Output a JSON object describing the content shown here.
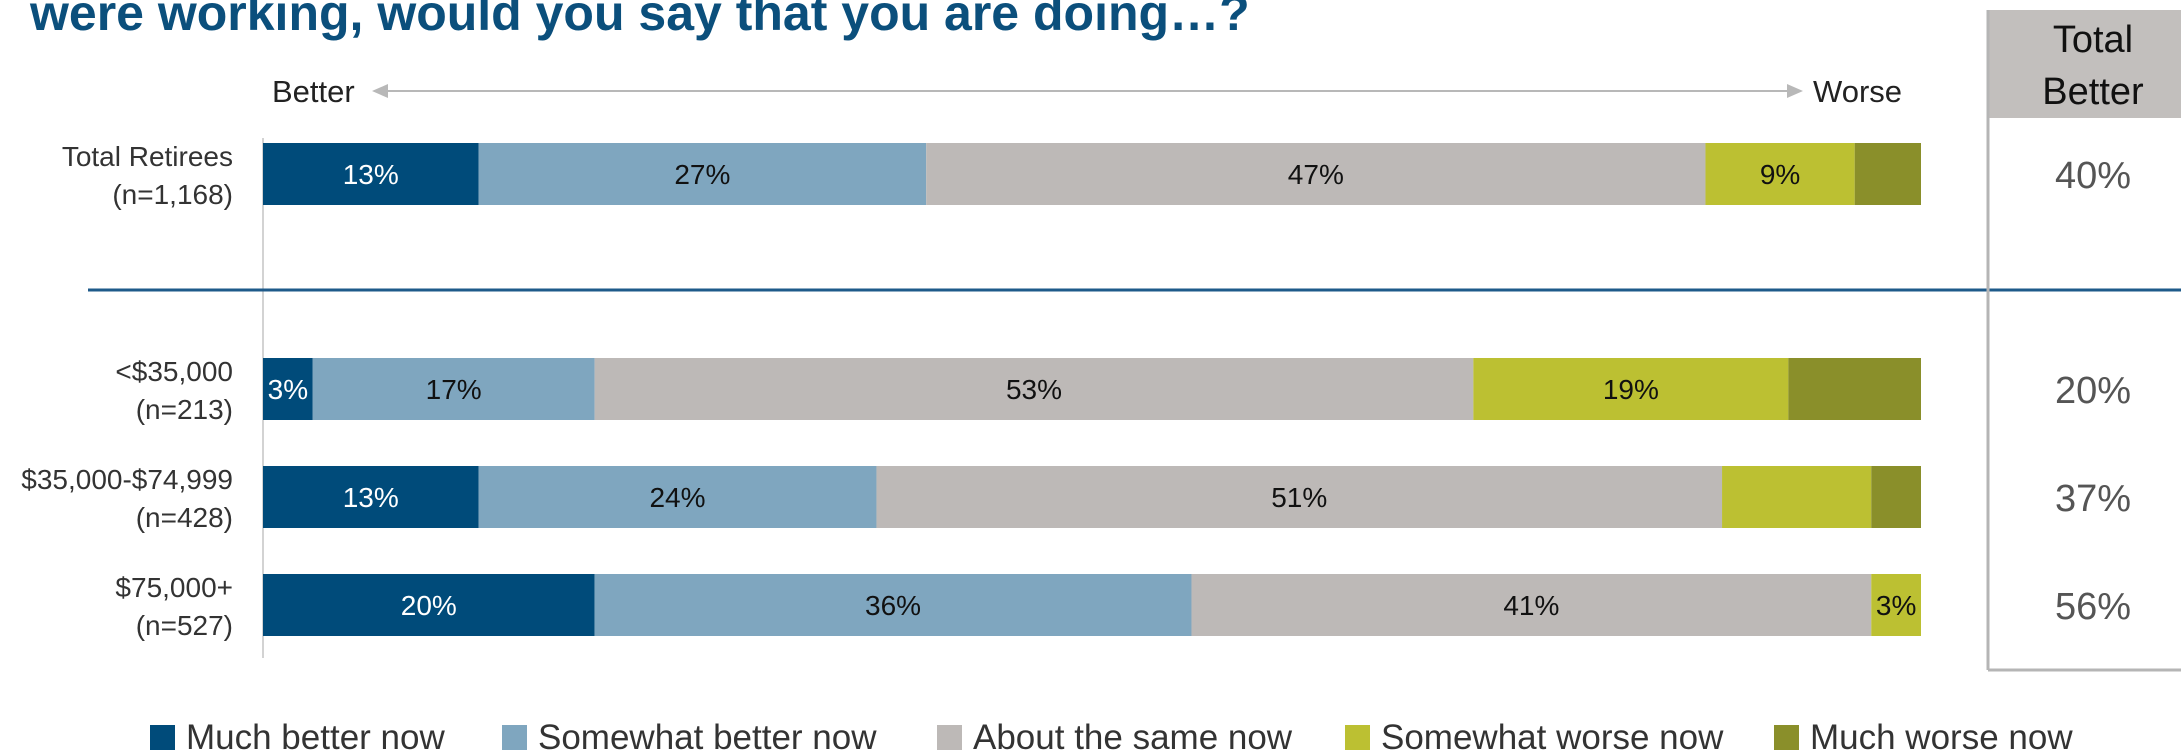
{
  "title": "were working, would you say that you are doing…?",
  "direction": {
    "left": "Better",
    "right": "Worse"
  },
  "total_better_header": [
    "Total",
    "Better"
  ],
  "colors": {
    "title": "#0b4f7c",
    "much_better": "#004b7a",
    "somewhat_better": "#7fa6bf",
    "same": "#bdb9b7",
    "somewhat_worse": "#bcc032",
    "much_worse": "#8a8f2a",
    "divider": "#1e5a8a",
    "header_bg": "#c2bfbd"
  },
  "chart_data": {
    "type": "bar",
    "orientation": "horizontal",
    "stacked": true,
    "xlim": [
      0,
      100
    ],
    "categories": [
      [
        "Total Retirees",
        "(n=1,168)"
      ],
      [
        "<$35,000",
        "(n=213)"
      ],
      [
        "$35,000-$74,999",
        "(n=428)"
      ],
      [
        "$75,000+",
        "(n=527)"
      ]
    ],
    "series": [
      {
        "name": "Much better now",
        "values": [
          13,
          3,
          13,
          20
        ],
        "labels": [
          "13%",
          "3%",
          "13%",
          "20%"
        ]
      },
      {
        "name": "Somewhat better now",
        "values": [
          27,
          17,
          24,
          36
        ],
        "labels": [
          "27%",
          "17%",
          "24%",
          "36%"
        ]
      },
      {
        "name": "About the same now",
        "values": [
          47,
          53,
          51,
          41
        ],
        "labels": [
          "47%",
          "53%",
          "51%",
          "41%"
        ]
      },
      {
        "name": "Somewhat worse now",
        "values": [
          9,
          19,
          9,
          3
        ],
        "labels": [
          "9%",
          "19%",
          "",
          "3%"
        ]
      },
      {
        "name": "Much worse now",
        "values": [
          4,
          8,
          3,
          0
        ],
        "labels": [
          "",
          "",
          "",
          ""
        ]
      }
    ],
    "total_better": [
      "40%",
      "20%",
      "37%",
      "56%"
    ],
    "legend_position": "bottom"
  }
}
